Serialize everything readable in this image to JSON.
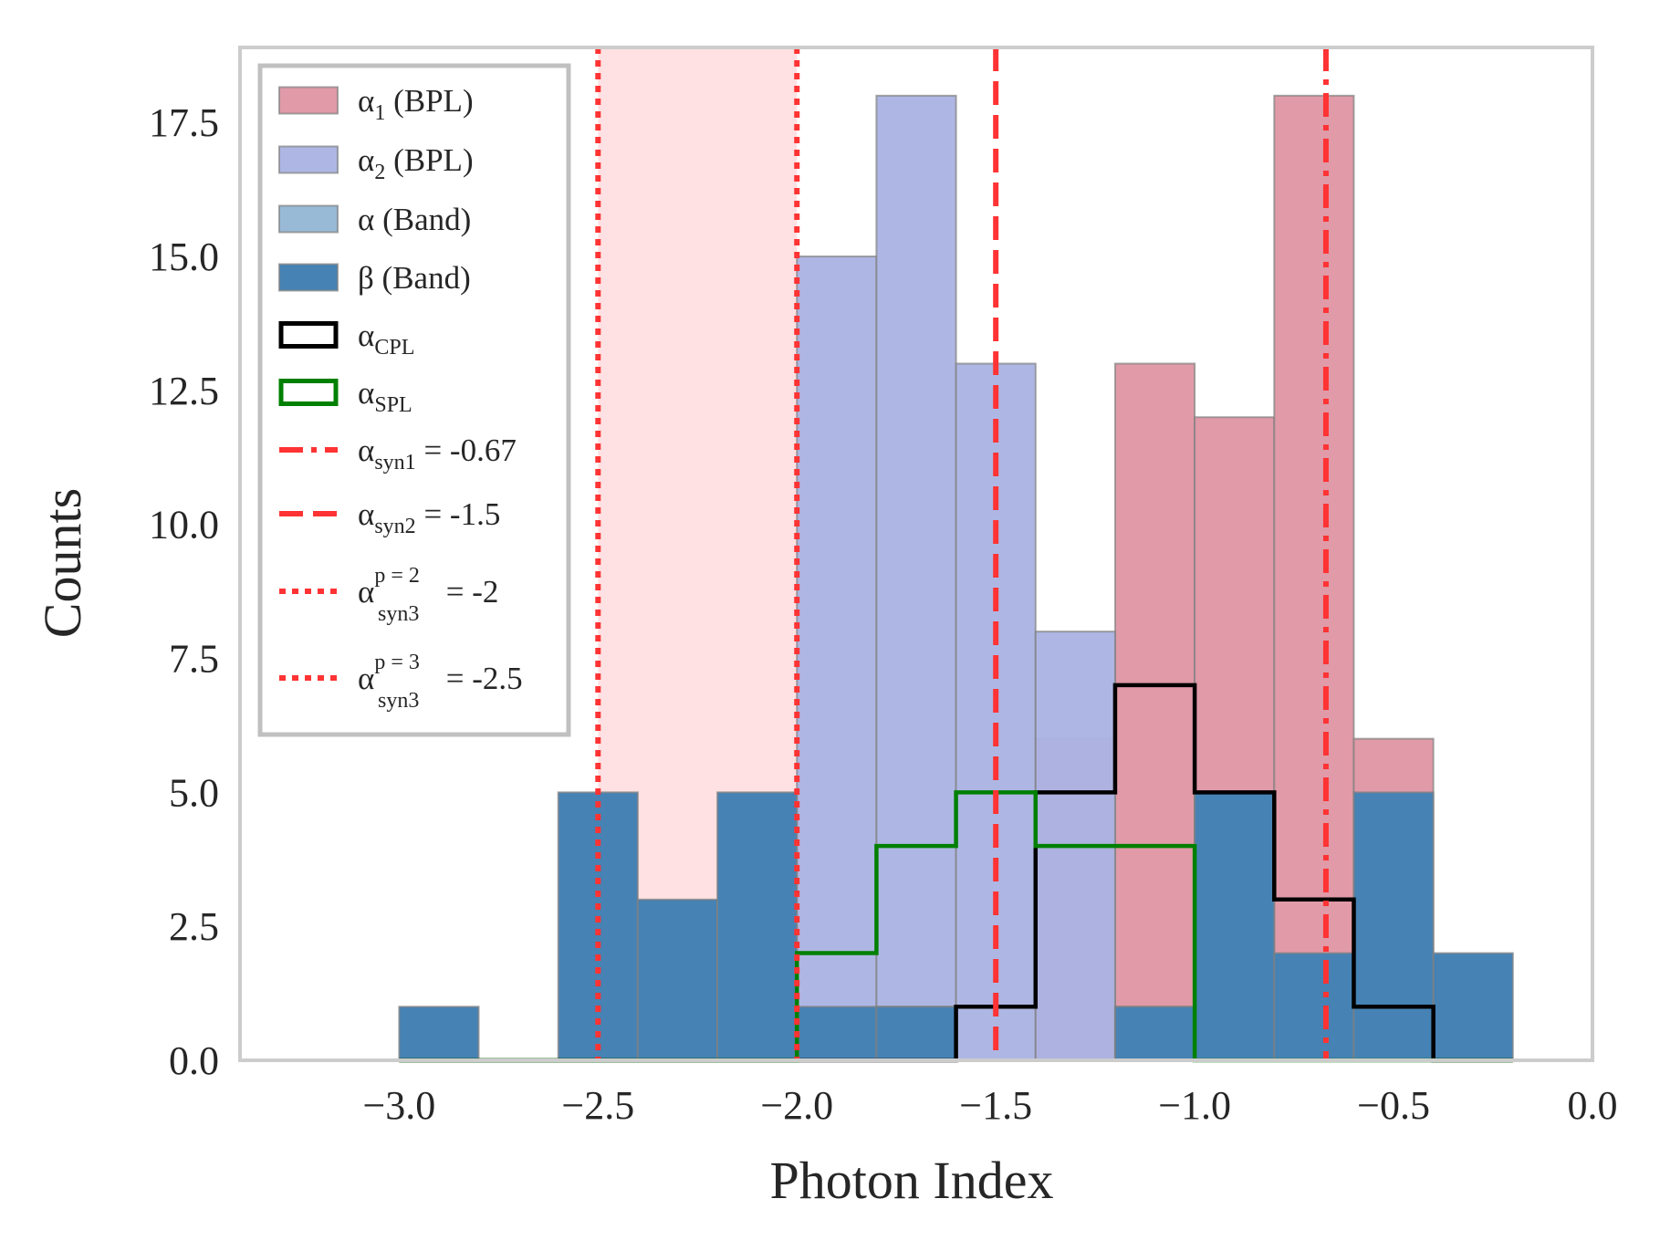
{
  "chart_data": {
    "type": "bar",
    "xlabel": "Photon Index",
    "ylabel": "Counts",
    "xlim": [
      -3.4,
      0.0
    ],
    "ylim": [
      0,
      18.9
    ],
    "grid": false,
    "legend_position": "top-left",
    "bin_edges": [
      -3.0,
      -2.8,
      -2.6,
      -2.4,
      -2.2,
      -2.0,
      -1.8,
      -1.6,
      -1.4,
      -1.2,
      -1.0,
      -0.8,
      -0.6,
      -0.4,
      -0.2
    ],
    "x_ticks": [
      {
        "value": -3.0,
        "label": "−3.0"
      },
      {
        "value": -2.5,
        "label": "−2.5"
      },
      {
        "value": -2.0,
        "label": "−2.0"
      },
      {
        "value": -1.5,
        "label": "−1.5"
      },
      {
        "value": -1.0,
        "label": "−1.0"
      },
      {
        "value": -0.5,
        "label": "−0.5"
      },
      {
        "value": 0.0,
        "label": "0.0"
      }
    ],
    "y_ticks": [
      {
        "value": 0,
        "label": "0.0"
      },
      {
        "value": 2.5,
        "label": "2.5"
      },
      {
        "value": 5,
        "label": "5.0"
      },
      {
        "value": 7.5,
        "label": "7.5"
      },
      {
        "value": 10,
        "label": "10.0"
      },
      {
        "value": 12.5,
        "label": "12.5"
      },
      {
        "value": 15,
        "label": "15.0"
      },
      {
        "value": 17.5,
        "label": "17.5"
      }
    ],
    "shaded_region": {
      "x": [
        -2.5,
        -2.0
      ],
      "color": "#ffe1e3"
    },
    "series": [
      {
        "key": "alpha1_bpl",
        "label_main": "α",
        "label_sub": "1",
        "label_tail": " (BPL)",
        "kind": "filled",
        "color": "#e09aa8",
        "opacity": 1.0,
        "values": [
          0,
          0,
          0,
          0,
          0,
          0,
          0,
          0,
          6,
          13,
          12,
          18,
          6,
          0
        ]
      },
      {
        "key": "alpha2_bpl",
        "label_main": "α",
        "label_sub": "2",
        "label_tail": " (BPL)",
        "kind": "filled",
        "color": "#aab3e3",
        "opacity": 0.95,
        "values": [
          0,
          0,
          0,
          0,
          0,
          15,
          18,
          13,
          8,
          1,
          0,
          0,
          0,
          0
        ]
      },
      {
        "key": "alpha_band",
        "label_main": "α (Band)",
        "label_sub": "",
        "label_tail": "",
        "kind": "filled",
        "color": "#4682b4",
        "opacity": 0.55,
        "values": [
          0,
          0,
          0,
          0,
          0,
          0,
          1,
          0,
          0,
          0,
          0,
          0,
          0,
          0
        ]
      },
      {
        "key": "beta_band",
        "label_main": "β (Band)",
        "label_sub": "",
        "label_tail": "",
        "kind": "filled",
        "color": "#4682b4",
        "opacity": 1.0,
        "values": [
          1,
          0,
          5,
          3,
          5,
          1,
          1,
          0,
          0,
          1,
          5,
          2,
          5,
          2
        ]
      },
      {
        "key": "alpha_cpl",
        "label_main": "α",
        "label_sub": "CPL",
        "label_tail": "",
        "kind": "step",
        "color": "#000000",
        "values": [
          0,
          0,
          0,
          0,
          0,
          0,
          0,
          1,
          5,
          7,
          5,
          3,
          1,
          0
        ]
      },
      {
        "key": "alpha_spl",
        "label_main": "α",
        "label_sub": "SPL",
        "label_tail": "",
        "kind": "step",
        "color": "#008000",
        "values": [
          0,
          0,
          0,
          0,
          0,
          2,
          4,
          5,
          4,
          4,
          0,
          0,
          0,
          0
        ]
      }
    ],
    "vlines": [
      {
        "key": "syn1",
        "x": -0.67,
        "style": "dashdot",
        "color": "#ff3333",
        "label_main": "α",
        "label_sub": "syn1",
        "label_sup": "",
        "label_tail": " = -0.67"
      },
      {
        "key": "syn2",
        "x": -1.5,
        "style": "dashed",
        "color": "#ff3333",
        "label_main": "α",
        "label_sub": "syn2",
        "label_sup": "",
        "label_tail": " = -1.5"
      },
      {
        "key": "syn3_p2",
        "x": -2.0,
        "style": "dotted",
        "color": "#ff3333",
        "label_main": "α",
        "label_sub": "syn3",
        "label_sup": "p = 2",
        "label_tail": " = -2"
      },
      {
        "key": "syn3_p3",
        "x": -2.5,
        "style": "dotted",
        "color": "#ff3333",
        "label_main": "α",
        "label_sub": "syn3",
        "label_sup": "p = 3",
        "label_tail": " = -2.5"
      }
    ]
  }
}
